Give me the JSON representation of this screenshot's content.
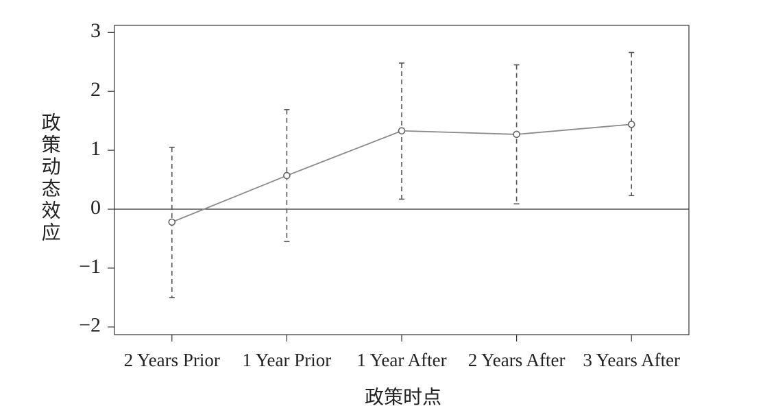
{
  "chart_data": {
    "type": "line",
    "xlabel": "政策时点",
    "ylabel": "政策动态效应",
    "categories": [
      "2 Years Prior",
      "1 Year Prior",
      "1 Year After",
      "2 Years After",
      "3 Years After"
    ],
    "series": [
      {
        "color": "#8a8a8a",
        "values": [
          -0.22,
          0.57,
          1.33,
          1.27,
          1.44
        ],
        "upper": [
          1.05,
          1.69,
          2.48,
          2.45,
          2.66
        ],
        "lower": [
          -1.5,
          -0.55,
          0.17,
          0.09,
          0.23
        ],
        "error_color": "#555555"
      }
    ],
    "ylim": [
      -2.13,
      3.12
    ],
    "yticks": [
      3,
      2,
      1,
      0,
      {
        "value": -1,
        "label": "−1"
      },
      {
        "value": -2,
        "label": "−2"
      }
    ],
    "zero_line": true
  }
}
